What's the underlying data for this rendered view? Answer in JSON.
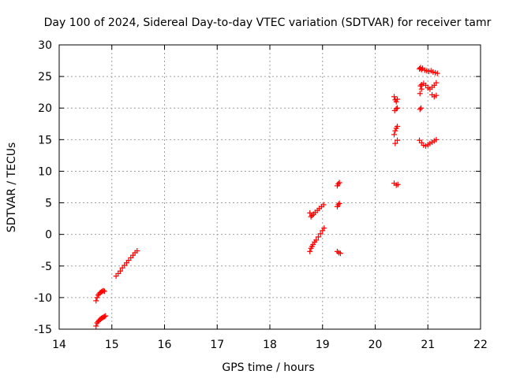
{
  "chart_data": {
    "type": "scatter",
    "title": "Day 100 of 2024, Sidereal Day-to-day VTEC variation (SDTVAR) for receiver tamr",
    "xlabel": "GPS time / hours",
    "ylabel": "SDTVAR / TECUs",
    "xlim": [
      14,
      22
    ],
    "ylim": [
      -15,
      30
    ],
    "xticks": [
      "14",
      "15",
      "16",
      "17",
      "18",
      "19",
      "20",
      "21",
      "22"
    ],
    "yticks": [
      "-15",
      "-10",
      "-5",
      "0",
      "5",
      "10",
      "15",
      "20",
      "25",
      "30"
    ],
    "grid": true,
    "marker": "plus",
    "series": [
      {
        "name": "SDTVAR",
        "color": "#ff0000",
        "x": [
          14.7,
          14.72,
          14.74,
          14.76,
          14.78,
          14.8,
          14.82,
          14.84,
          14.86,
          14.7,
          14.72,
          14.74,
          14.76,
          14.78,
          14.8,
          14.82,
          14.84,
          14.86,
          14.88,
          15.08,
          15.12,
          15.16,
          15.2,
          15.24,
          15.28,
          15.32,
          15.36,
          15.4,
          15.44,
          15.48,
          18.76,
          18.78,
          18.8,
          18.83,
          18.86,
          18.9,
          18.94,
          18.98,
          19.02,
          18.76,
          18.78,
          18.8,
          18.82,
          18.85,
          18.88,
          18.92,
          18.96,
          19.0,
          19.03,
          19.28,
          19.3,
          19.32,
          19.28,
          19.3,
          19.32,
          19.28,
          19.31,
          19.34,
          20.36,
          20.38,
          20.4,
          20.42,
          20.37,
          20.4,
          20.42,
          20.36,
          20.38,
          20.4,
          20.42,
          20.38,
          20.42,
          20.36,
          20.4,
          20.43,
          20.84,
          20.86,
          20.88,
          20.85,
          20.88,
          20.86,
          20.88,
          20.92,
          20.96,
          21.0,
          21.04,
          21.08,
          21.12,
          21.16,
          20.84,
          20.88,
          20.92,
          20.96,
          21.0,
          21.04,
          21.08,
          21.12,
          21.16,
          20.86,
          20.9,
          20.94,
          20.98,
          21.02,
          21.06,
          21.1,
          21.14,
          21.18,
          21.08,
          21.12,
          21.16,
          20.85,
          20.87
        ],
        "y": [
          -10.5,
          -10.0,
          -9.6,
          -9.4,
          -9.2,
          -9.1,
          -9.0,
          -8.9,
          -9.0,
          -14.5,
          -14.0,
          -13.8,
          -13.6,
          -13.4,
          -13.3,
          -13.2,
          -13.1,
          -13.0,
          -12.9,
          -6.6,
          -6.2,
          -5.8,
          -5.3,
          -4.9,
          -4.5,
          -4.1,
          -3.7,
          -3.3,
          -2.9,
          -2.6,
          3.4,
          2.8,
          3.0,
          3.2,
          3.5,
          3.8,
          4.1,
          4.4,
          4.7,
          -2.7,
          -2.2,
          -1.9,
          -1.6,
          -1.2,
          -0.9,
          -0.4,
          0.1,
          0.6,
          1.0,
          7.7,
          8.0,
          8.2,
          4.4,
          4.7,
          4.9,
          -2.7,
          -2.9,
          -3.0,
          21.8,
          21.3,
          21.0,
          21.4,
          19.6,
          19.9,
          20.0,
          15.8,
          16.4,
          16.8,
          17.1,
          14.4,
          14.9,
          8.1,
          7.8,
          7.9,
          26.2,
          26.3,
          26.1,
          22.3,
          23.0,
          23.5,
          23.7,
          23.9,
          23.6,
          23.2,
          23.0,
          23.3,
          23.6,
          24.0,
          14.9,
          14.5,
          14.1,
          14.0,
          14.2,
          14.4,
          14.6,
          14.8,
          15.0,
          26.4,
          26.3,
          26.0,
          25.9,
          25.8,
          25.9,
          25.7,
          25.6,
          25.5,
          22.1,
          21.8,
          22.0,
          19.8,
          20.0
        ]
      }
    ]
  }
}
